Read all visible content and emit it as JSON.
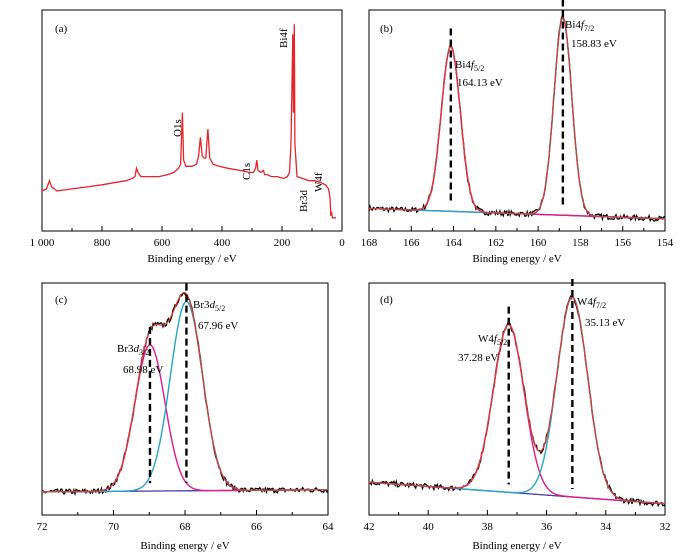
{
  "colors": {
    "survey": "#e8232a",
    "raw": "#000000",
    "envelope": "#e03a2a",
    "peak_a": "#e0198c",
    "peak_b": "#25a6c8",
    "baseline": "#4b3aa6",
    "marker": "#000000"
  },
  "chart_data": [
    {
      "type": "line",
      "panel": "(a)",
      "xlabel": "Binding energy / eV",
      "xlim": [
        1000,
        0
      ],
      "reversed_x": true,
      "xticks": [
        1000,
        800,
        600,
        400,
        200,
        0
      ],
      "xtick_labels": [
        "1 000",
        "800",
        "600",
        "400",
        "200",
        "0"
      ],
      "y_ticks_shown": false,
      "series": [
        {
          "points": [
            [
              1000,
              0.17
            ],
            [
              985,
              0.18
            ],
            [
              975,
              0.22
            ],
            [
              968,
              0.19
            ],
            [
              950,
              0.17
            ],
            [
              900,
              0.18
            ],
            [
              850,
              0.19
            ],
            [
              800,
              0.2
            ],
            [
              760,
              0.21
            ],
            [
              720,
              0.22
            ],
            [
              700,
              0.23
            ],
            [
              690,
              0.24
            ],
            [
              685,
              0.28
            ],
            [
              680,
              0.26
            ],
            [
              670,
              0.24
            ],
            [
              640,
              0.24
            ],
            [
              610,
              0.24
            ],
            [
              580,
              0.25
            ],
            [
              560,
              0.26
            ],
            [
              545,
              0.28
            ],
            [
              538,
              0.3
            ],
            [
              532,
              0.55
            ],
            [
              528,
              0.32
            ],
            [
              520,
              0.29
            ],
            [
              500,
              0.29
            ],
            [
              485,
              0.3
            ],
            [
              478,
              0.34
            ],
            [
              472,
              0.43
            ],
            [
              466,
              0.34
            ],
            [
              460,
              0.33
            ],
            [
              454,
              0.33
            ],
            [
              447,
              0.47
            ],
            [
              441,
              0.33
            ],
            [
              430,
              0.3
            ],
            [
              410,
              0.29
            ],
            [
              380,
              0.28
            ],
            [
              340,
              0.27
            ],
            [
              310,
              0.26
            ],
            [
              295,
              0.26
            ],
            [
              288,
              0.28
            ],
            [
              284,
              0.32
            ],
            [
              280,
              0.27
            ],
            [
              270,
              0.26
            ],
            [
              262,
              0.27
            ],
            [
              258,
              0.25
            ],
            [
              250,
              0.25
            ],
            [
              235,
              0.24
            ],
            [
              215,
              0.24
            ],
            [
              195,
              0.23
            ],
            [
              182,
              0.24
            ],
            [
              175,
              0.26
            ],
            [
              170,
              0.4
            ],
            [
              164,
              0.93
            ],
            [
              162,
              0.55
            ],
            [
              159,
              0.98
            ],
            [
              157,
              0.4
            ],
            [
              150,
              0.24
            ],
            [
              130,
              0.23
            ],
            [
              110,
              0.22
            ],
            [
              90,
              0.22
            ],
            [
              70,
              0.21
            ],
            [
              55,
              0.2
            ],
            [
              45,
              0.18
            ],
            [
              40,
              0.14
            ],
            [
              37.3,
              0.05
            ],
            [
              35.1,
              0.07
            ],
            [
              32,
              0.04
            ],
            [
              25,
              0.04
            ],
            [
              20,
              0.04
            ]
          ]
        }
      ],
      "annotations": [
        {
          "text": "O1s",
          "x": 532
        },
        {
          "text": "C1s",
          "x": 284
        },
        {
          "text": "Bi4f",
          "x": 162
        },
        {
          "text": "Br3d",
          "x": 69
        },
        {
          "text": "W4f",
          "x": 36
        }
      ]
    },
    {
      "type": "line",
      "panel": "(b)",
      "xlabel": "Binding energy / eV",
      "xlim": [
        168,
        154
      ],
      "reversed_x": true,
      "xticks": [
        168,
        166,
        164,
        162,
        160,
        158,
        156,
        154
      ],
      "xtick_labels": [
        "168",
        "166",
        "164",
        "162",
        "160",
        "158",
        "156",
        "154"
      ],
      "y_ticks_shown": false,
      "baseline": {
        "start": 0.085,
        "end": 0.035
      },
      "peaks": [
        {
          "label": "Bi4f5/2",
          "center": 164.13,
          "value": "164.13 eV",
          "height": 0.8,
          "sigma": 0.45
        },
        {
          "label": "Bi4f7/2",
          "center": 158.83,
          "value": "158.83 eV",
          "height": 0.96,
          "sigma": 0.42
        }
      ]
    },
    {
      "type": "line",
      "panel": "(c)",
      "xlabel": "Binding energy / eV",
      "xlim": [
        72,
        64
      ],
      "reversed_x": true,
      "xticks": [
        72,
        70,
        68,
        66,
        64
      ],
      "xtick_labels": [
        "72",
        "70",
        "68",
        "66",
        "64"
      ],
      "y_ticks_shown": false,
      "baseline": {
        "start": 0.075,
        "end": 0.085
      },
      "peaks": [
        {
          "label": "Br3d3/2",
          "center": 68.98,
          "value": "68.98 eV",
          "height": 0.68,
          "sigma": 0.42
        },
        {
          "label": "Br3d5/2",
          "center": 67.96,
          "value": "67.96 eV",
          "height": 0.88,
          "sigma": 0.45
        }
      ]
    },
    {
      "type": "line",
      "panel": "(d)",
      "xlabel": "Binding energy / eV",
      "xlim": [
        42,
        32
      ],
      "reversed_x": true,
      "xticks": [
        42,
        40,
        38,
        36,
        34,
        32
      ],
      "xtick_labels": [
        "42",
        "40",
        "38",
        "36",
        "34",
        "32"
      ],
      "y_ticks_shown": false,
      "baseline": {
        "start": 0.12,
        "end": 0.02
      },
      "peaks": [
        {
          "label": "W4f5/2",
          "center": 37.28,
          "value": "37.28 eV",
          "height": 0.78,
          "sigma": 0.52
        },
        {
          "label": "W4f7/2",
          "center": 35.13,
          "value": "35.13 eV",
          "height": 0.93,
          "sigma": 0.52
        }
      ]
    }
  ]
}
